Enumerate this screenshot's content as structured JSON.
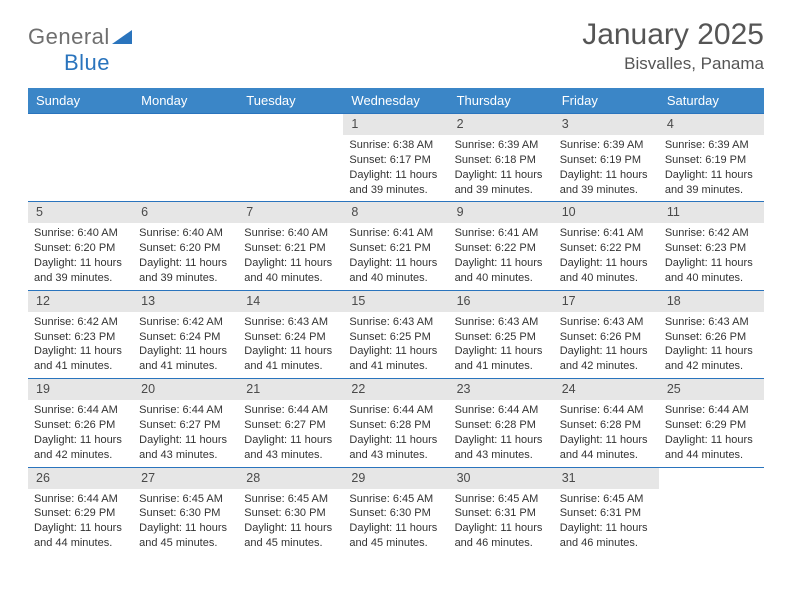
{
  "logo": {
    "word1": "General",
    "word2": "Blue"
  },
  "title": "January 2025",
  "location": "Bisvalles, Panama",
  "colors": {
    "header_bg": "#3b86c7",
    "header_text": "#ffffff",
    "row_border": "#2a74bd",
    "daynum_bg": "#e6e6e6",
    "body_text": "#333333",
    "title_text": "#555555",
    "logo_gray": "#6f6f6f",
    "logo_blue": "#2a74bd",
    "page_bg": "#ffffff"
  },
  "day_headers": [
    "Sunday",
    "Monday",
    "Tuesday",
    "Wednesday",
    "Thursday",
    "Friday",
    "Saturday"
  ],
  "labels": {
    "sunrise": "Sunrise:",
    "sunset": "Sunset:",
    "daylight": "Daylight:"
  },
  "weeks": [
    [
      null,
      null,
      null,
      {
        "n": "1",
        "sunrise": "6:38 AM",
        "sunset": "6:17 PM",
        "daylight": "11 hours and 39 minutes."
      },
      {
        "n": "2",
        "sunrise": "6:39 AM",
        "sunset": "6:18 PM",
        "daylight": "11 hours and 39 minutes."
      },
      {
        "n": "3",
        "sunrise": "6:39 AM",
        "sunset": "6:19 PM",
        "daylight": "11 hours and 39 minutes."
      },
      {
        "n": "4",
        "sunrise": "6:39 AM",
        "sunset": "6:19 PM",
        "daylight": "11 hours and 39 minutes."
      }
    ],
    [
      {
        "n": "5",
        "sunrise": "6:40 AM",
        "sunset": "6:20 PM",
        "daylight": "11 hours and 39 minutes."
      },
      {
        "n": "6",
        "sunrise": "6:40 AM",
        "sunset": "6:20 PM",
        "daylight": "11 hours and 39 minutes."
      },
      {
        "n": "7",
        "sunrise": "6:40 AM",
        "sunset": "6:21 PM",
        "daylight": "11 hours and 40 minutes."
      },
      {
        "n": "8",
        "sunrise": "6:41 AM",
        "sunset": "6:21 PM",
        "daylight": "11 hours and 40 minutes."
      },
      {
        "n": "9",
        "sunrise": "6:41 AM",
        "sunset": "6:22 PM",
        "daylight": "11 hours and 40 minutes."
      },
      {
        "n": "10",
        "sunrise": "6:41 AM",
        "sunset": "6:22 PM",
        "daylight": "11 hours and 40 minutes."
      },
      {
        "n": "11",
        "sunrise": "6:42 AM",
        "sunset": "6:23 PM",
        "daylight": "11 hours and 40 minutes."
      }
    ],
    [
      {
        "n": "12",
        "sunrise": "6:42 AM",
        "sunset": "6:23 PM",
        "daylight": "11 hours and 41 minutes."
      },
      {
        "n": "13",
        "sunrise": "6:42 AM",
        "sunset": "6:24 PM",
        "daylight": "11 hours and 41 minutes."
      },
      {
        "n": "14",
        "sunrise": "6:43 AM",
        "sunset": "6:24 PM",
        "daylight": "11 hours and 41 minutes."
      },
      {
        "n": "15",
        "sunrise": "6:43 AM",
        "sunset": "6:25 PM",
        "daylight": "11 hours and 41 minutes."
      },
      {
        "n": "16",
        "sunrise": "6:43 AM",
        "sunset": "6:25 PM",
        "daylight": "11 hours and 41 minutes."
      },
      {
        "n": "17",
        "sunrise": "6:43 AM",
        "sunset": "6:26 PM",
        "daylight": "11 hours and 42 minutes."
      },
      {
        "n": "18",
        "sunrise": "6:43 AM",
        "sunset": "6:26 PM",
        "daylight": "11 hours and 42 minutes."
      }
    ],
    [
      {
        "n": "19",
        "sunrise": "6:44 AM",
        "sunset": "6:26 PM",
        "daylight": "11 hours and 42 minutes."
      },
      {
        "n": "20",
        "sunrise": "6:44 AM",
        "sunset": "6:27 PM",
        "daylight": "11 hours and 43 minutes."
      },
      {
        "n": "21",
        "sunrise": "6:44 AM",
        "sunset": "6:27 PM",
        "daylight": "11 hours and 43 minutes."
      },
      {
        "n": "22",
        "sunrise": "6:44 AM",
        "sunset": "6:28 PM",
        "daylight": "11 hours and 43 minutes."
      },
      {
        "n": "23",
        "sunrise": "6:44 AM",
        "sunset": "6:28 PM",
        "daylight": "11 hours and 43 minutes."
      },
      {
        "n": "24",
        "sunrise": "6:44 AM",
        "sunset": "6:28 PM",
        "daylight": "11 hours and 44 minutes."
      },
      {
        "n": "25",
        "sunrise": "6:44 AM",
        "sunset": "6:29 PM",
        "daylight": "11 hours and 44 minutes."
      }
    ],
    [
      {
        "n": "26",
        "sunrise": "6:44 AM",
        "sunset": "6:29 PM",
        "daylight": "11 hours and 44 minutes."
      },
      {
        "n": "27",
        "sunrise": "6:45 AM",
        "sunset": "6:30 PM",
        "daylight": "11 hours and 45 minutes."
      },
      {
        "n": "28",
        "sunrise": "6:45 AM",
        "sunset": "6:30 PM",
        "daylight": "11 hours and 45 minutes."
      },
      {
        "n": "29",
        "sunrise": "6:45 AM",
        "sunset": "6:30 PM",
        "daylight": "11 hours and 45 minutes."
      },
      {
        "n": "30",
        "sunrise": "6:45 AM",
        "sunset": "6:31 PM",
        "daylight": "11 hours and 46 minutes."
      },
      {
        "n": "31",
        "sunrise": "6:45 AM",
        "sunset": "6:31 PM",
        "daylight": "11 hours and 46 minutes."
      },
      null
    ]
  ]
}
